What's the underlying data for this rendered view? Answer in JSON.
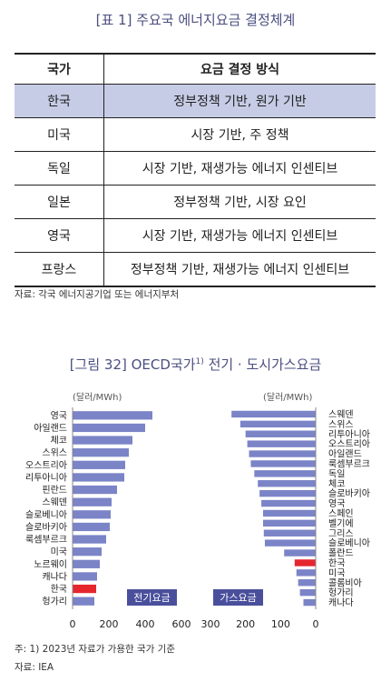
{
  "table": {
    "title": "[표 1] 주요국 에너지요금 결정체계",
    "headers": [
      "국가",
      "요금 결정 방식"
    ],
    "rows": [
      {
        "country": "한국",
        "method": "정부정책 기반, 원가 기반"
      },
      {
        "country": "미국",
        "method": "시장 기반, 주 정책"
      },
      {
        "country": "독일",
        "method": "시장 기반, 재생가능 에너지 인센티브"
      },
      {
        "country": "일본",
        "method": "정부정책 기반, 시장 요인"
      },
      {
        "country": "영국",
        "method": "시장 기반, 재생가능 에너지 인센티브"
      },
      {
        "country": "프랑스",
        "method": "정부정책 기반, 재생가능 에너지 인센티브"
      }
    ],
    "source": "자료: 각국 에너지공기업 또는 에너지부처"
  },
  "figure": {
    "title": "[그림 32] OECD국가",
    "title_sup": "1)",
    "title_rest": " 전기 · 도시가스요금",
    "note": "주: 1) 2023년 자료가 가용한 국가 기준",
    "source": "자료: IEA"
  },
  "chart_data": [
    {
      "type": "bar",
      "orientation": "horizontal",
      "unit": "(달러/MWh)",
      "legend_label": "전기요금",
      "categories": [
        "영국",
        "아일랜드",
        "체코",
        "스위스",
        "오스트리아",
        "리투아니아",
        "핀란드",
        "스웨덴",
        "슬로베니아",
        "슬로바키아",
        "룩셈부르크",
        "미국",
        "노르웨이",
        "캐나다",
        "한국",
        "헝가리"
      ],
      "values": [
        440,
        400,
        330,
        310,
        290,
        285,
        245,
        215,
        210,
        205,
        185,
        160,
        150,
        135,
        130,
        120
      ],
      "highlight": "한국",
      "xlim": [
        0,
        600
      ],
      "xticks": [
        0,
        200,
        400,
        600
      ],
      "colors": {
        "bar": "#7b84c7",
        "highlight": "#e6262d",
        "legend_bg": "#4a4f9c"
      }
    },
    {
      "type": "bar",
      "orientation": "horizontal",
      "reversed_axis": true,
      "unit": "(달러/MWh)",
      "legend_label": "가스요금",
      "categories": [
        "스웨덴",
        "스위스",
        "리투아니아",
        "오스트리아",
        "아일랜드",
        "룩셈부르크",
        "독일",
        "체코",
        "슬로바키아",
        "영국",
        "스페인",
        "벨기에",
        "그리스",
        "슬로베니아",
        "폴란드",
        "한국",
        "미국",
        "콜롬비아",
        "헝가리",
        "캐나다"
      ],
      "values": [
        240,
        215,
        200,
        195,
        190,
        185,
        175,
        165,
        160,
        155,
        150,
        150,
        148,
        145,
        90,
        60,
        55,
        50,
        45,
        35
      ],
      "highlight": "한국",
      "xlim": [
        300,
        0
      ],
      "xticks": [
        300,
        200,
        100,
        0
      ],
      "colors": {
        "bar": "#7b84c7",
        "highlight": "#e6262d",
        "legend_bg": "#4a4f9c"
      }
    }
  ]
}
